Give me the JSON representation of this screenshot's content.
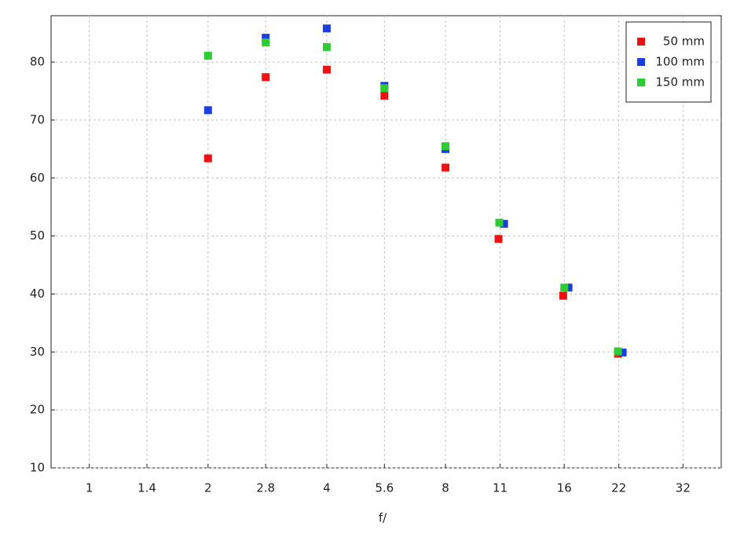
{
  "chart_data": {
    "type": "scatter",
    "x_label": "f/",
    "xscale": "log",
    "xlim": [
      0.8,
      40
    ],
    "xticks": [
      1,
      1.4,
      2,
      2.8,
      4,
      5.6,
      8,
      11,
      16,
      22,
      32
    ],
    "ylim": [
      10,
      88
    ],
    "yticks": [
      10,
      20,
      30,
      40,
      50,
      60,
      70,
      80
    ],
    "grid": true,
    "legend": "upper right",
    "series": [
      {
        "name": "50 mm",
        "color": "#ee1111",
        "x": [
          2,
          2.8,
          4,
          5.6,
          8,
          10.9,
          15.9,
          21.9
        ],
        "values": [
          63.4,
          77.4,
          78.7,
          74.2,
          61.8,
          49.5,
          39.7,
          29.7
        ]
      },
      {
        "name": "100 mm",
        "color": "#1a3ee0",
        "x": [
          2,
          2.8,
          4,
          5.6,
          8,
          11.26,
          16.4,
          22.5
        ],
        "values": [
          71.7,
          84.2,
          85.8,
          75.9,
          65.0,
          52.1,
          41.1,
          29.9
        ]
      },
      {
        "name": "150 mm",
        "color": "#2ecc33",
        "x": [
          2,
          2.8,
          4,
          5.6,
          8,
          10.95,
          16.0,
          21.9
        ],
        "values": [
          81.1,
          83.4,
          82.6,
          75.5,
          65.5,
          52.3,
          41.1,
          30.1
        ]
      }
    ]
  }
}
